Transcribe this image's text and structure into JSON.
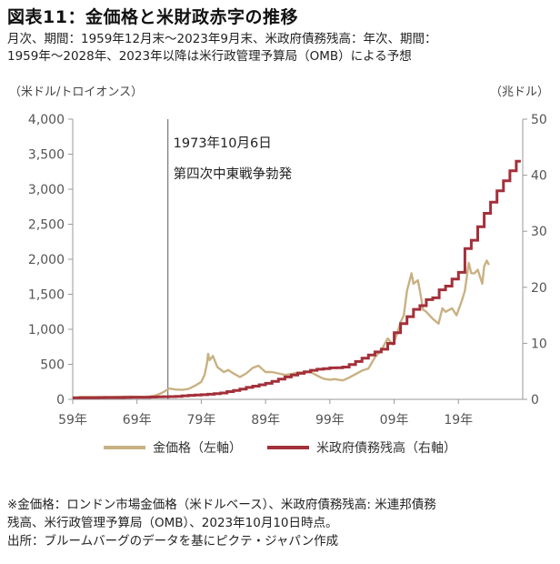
{
  "header": {
    "title": "図表11：金価格と米財政赤字の推移",
    "subtitle_line1": "月次、期間：1959年12月末～2023年9月末、米政府債務残高：年次、期間：",
    "subtitle_line2": "1959年～2028年、2023年以降は米行政管理予算局（OMB）による予想"
  },
  "axes": {
    "left_unit": "（米ドル/トロイオンス）",
    "right_unit": "（兆ドル）"
  },
  "annotation": {
    "line1": "1973年10月6日",
    "line2": "第四次中東戦争勃発"
  },
  "legend": {
    "gold": "金価格（左軸）",
    "debt": "米政府債務残高（右軸）"
  },
  "notes": {
    "line1": "※金価格：ロンドン市場金価格（米ドルベース）、米政府債務残高: 米連邦債務",
    "line2": "残高、米行政管理予算局（OMB）、2023年10月10日時点。",
    "line3": "出所：ブルームバーグのデータを基にピクテ・ジャパン作成"
  },
  "colors": {
    "gold": "#c9b183",
    "debt": "#a3303a",
    "axis": "#999999",
    "vline": "#777777"
  },
  "chart_data": {
    "type": "line",
    "title": "図表11：金価格と米財政赤字の推移",
    "x_range": [
      1959,
      2029
    ],
    "x_ticks": [
      "59年",
      "69年",
      "79年",
      "89年",
      "99年",
      "09年",
      "19年"
    ],
    "x_tick_values": [
      1959,
      1969,
      1979,
      1989,
      1999,
      2009,
      2019
    ],
    "y_left": {
      "label": "（米ドル/トロイオンス）",
      "range": [
        0,
        4000
      ],
      "ticks": [
        "0",
        "500",
        "1,000",
        "1,500",
        "2,000",
        "2,500",
        "3,000",
        "3,500",
        "4,000"
      ]
    },
    "y_right": {
      "label": "（兆ドル）",
      "range": [
        0,
        50
      ],
      "ticks": [
        "0",
        "10",
        "20",
        "30",
        "40",
        "50"
      ]
    },
    "annotation_x": 1973.8,
    "grid": false,
    "legend_position": "bottom",
    "series": [
      {
        "name": "金価格（左軸）",
        "axis": "left",
        "x": [
          1959.9,
          1962,
          1965,
          1968,
          1970,
          1971,
          1972,
          1973,
          1974,
          1975,
          1976,
          1977,
          1978,
          1979.0,
          1979.5,
          1979.9,
          1980.05,
          1980.3,
          1980.8,
          1981.5,
          1982.5,
          1983.2,
          1984,
          1985,
          1986,
          1987,
          1987.9,
          1988.5,
          1989,
          1990,
          1991,
          1992,
          1993,
          1994,
          1995,
          1996,
          1997,
          1998,
          1999,
          1999.8,
          2000,
          2001,
          2002,
          2003,
          2004,
          2005,
          2006,
          2007,
          2008,
          2008.8,
          2009.5,
          2010,
          2010.5,
          2011,
          2011.7,
          2012,
          2012.7,
          2013,
          2013.5,
          2014,
          2015,
          2015.9,
          2016.5,
          2017,
          2018,
          2018.7,
          2019.5,
          2020,
          2020.6,
          2021,
          2021.5,
          2022,
          2022.7,
          2023,
          2023.4,
          2023.75
        ],
        "values": [
          35,
          35,
          35,
          39,
          36,
          42,
          58,
          97,
          154,
          140,
          135,
          148,
          193,
          250,
          350,
          520,
          650,
          560,
          620,
          460,
          390,
          420,
          370,
          320,
          370,
          450,
          480,
          430,
          390,
          390,
          370,
          350,
          360,
          385,
          385,
          390,
          340,
          295,
          280,
          290,
          285,
          270,
          310,
          360,
          410,
          440,
          600,
          700,
          870,
          780,
          950,
          1100,
          1200,
          1550,
          1800,
          1650,
          1700,
          1550,
          1280,
          1250,
          1150,
          1080,
          1300,
          1250,
          1300,
          1200,
          1400,
          1550,
          1950,
          1800,
          1800,
          1850,
          1650,
          1900,
          1980,
          1920
        ]
      },
      {
        "name": "米政府債務残高（右軸）",
        "axis": "right",
        "x": [
          1959,
          1960,
          1961,
          1962,
          1963,
          1964,
          1965,
          1966,
          1967,
          1968,
          1969,
          1970,
          1971,
          1972,
          1973,
          1974,
          1975,
          1976,
          1977,
          1978,
          1979,
          1980,
          1981,
          1982,
          1983,
          1984,
          1985,
          1986,
          1987,
          1988,
          1989,
          1990,
          1991,
          1992,
          1993,
          1994,
          1995,
          1996,
          1997,
          1998,
          1999,
          2000,
          2001,
          2002,
          2003,
          2004,
          2005,
          2006,
          2007,
          2008,
          2009,
          2010,
          2011,
          2012,
          2013,
          2014,
          2015,
          2016,
          2017,
          2018,
          2019,
          2020,
          2021,
          2022,
          2023,
          2024,
          2025,
          2026,
          2027,
          2028
        ],
        "values": [
          0.29,
          0.29,
          0.29,
          0.3,
          0.31,
          0.32,
          0.32,
          0.33,
          0.34,
          0.37,
          0.37,
          0.38,
          0.41,
          0.44,
          0.47,
          0.48,
          0.54,
          0.63,
          0.71,
          0.78,
          0.83,
          0.91,
          1.0,
          1.14,
          1.38,
          1.57,
          1.82,
          2.13,
          2.35,
          2.6,
          2.86,
          3.21,
          3.6,
          4.0,
          4.35,
          4.64,
          4.92,
          5.18,
          5.37,
          5.48,
          5.61,
          5.63,
          5.77,
          6.2,
          6.76,
          7.35,
          7.91,
          8.45,
          8.95,
          9.99,
          11.88,
          13.53,
          14.76,
          16.05,
          16.72,
          17.8,
          18.12,
          19.54,
          20.21,
          21.46,
          22.67,
          26.9,
          28.4,
          30.8,
          33.2,
          35.2,
          37.2,
          39.0,
          40.8,
          42.5
        ]
      }
    ]
  }
}
